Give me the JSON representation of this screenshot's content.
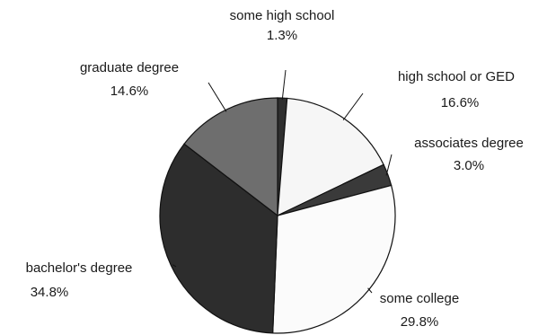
{
  "chart_data": {
    "type": "pie",
    "title": "",
    "slices": [
      {
        "label": "some high school",
        "value": 1.3,
        "value_label": "1.3%",
        "color": "#2f2f2f"
      },
      {
        "label": "high school or GED",
        "value": 16.6,
        "value_label": "16.6%",
        "color": "#f6f6f6"
      },
      {
        "label": "associates degree",
        "value": 3.0,
        "value_label": "3.0%",
        "color": "#3a3a3a"
      },
      {
        "label": "some college",
        "value": 29.8,
        "value_label": "29.8%",
        "color": "#fbfbfb"
      },
      {
        "label": "bachelor's degree",
        "value": 34.8,
        "value_label": "34.8%",
        "color": "#2d2d2d"
      },
      {
        "label": "graduate degree",
        "value": 14.6,
        "value_label": "14.6%",
        "color": "#6e6e6e"
      }
    ],
    "start": "12 o'clock",
    "direction": "clockwise",
    "legend": "none"
  }
}
